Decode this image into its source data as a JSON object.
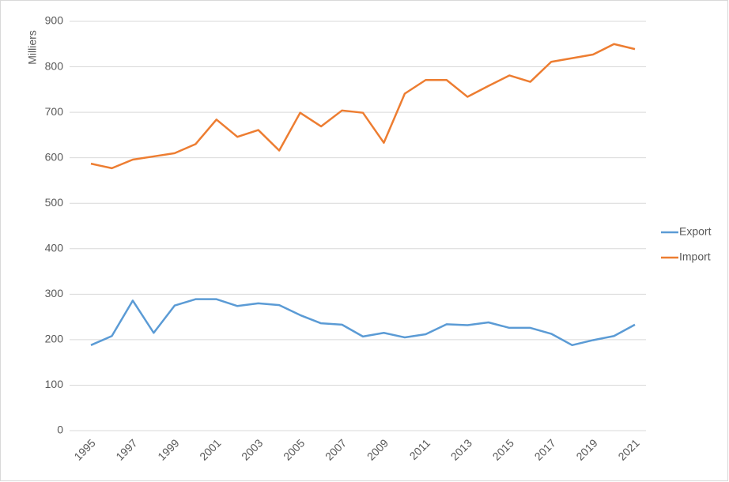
{
  "chart_data": {
    "type": "line",
    "y_label": "Milliers",
    "categories": [
      "1995",
      null,
      "1997",
      null,
      "1999",
      null,
      "2001",
      null,
      "2003",
      null,
      "2005",
      null,
      "2007",
      null,
      "2009",
      null,
      "2011",
      null,
      "2013",
      null,
      "2015",
      null,
      "2017",
      null,
      "2019",
      null,
      "2021"
    ],
    "series": [
      {
        "name": "Export",
        "color": "#5b9bd5",
        "values": [
          188,
          208,
          286,
          215,
          275,
          289,
          289,
          274,
          280,
          276,
          254,
          236,
          233,
          207,
          215,
          205,
          212,
          234,
          232,
          238,
          226,
          226,
          213,
          188,
          199,
          208,
          233
        ]
      },
      {
        "name": "Import",
        "color": "#ed7d31",
        "values": [
          587,
          577,
          596,
          603,
          610,
          630,
          684,
          646,
          661,
          616,
          699,
          669,
          704,
          699,
          633,
          741,
          771,
          771,
          734,
          758,
          781,
          767,
          811,
          819,
          827,
          850,
          839
        ]
      }
    ],
    "ylim": [
      0,
      900
    ],
    "yticks": [
      0,
      100,
      200,
      300,
      400,
      500,
      600,
      700,
      800,
      900
    ],
    "grid": true,
    "legend": "right"
  }
}
